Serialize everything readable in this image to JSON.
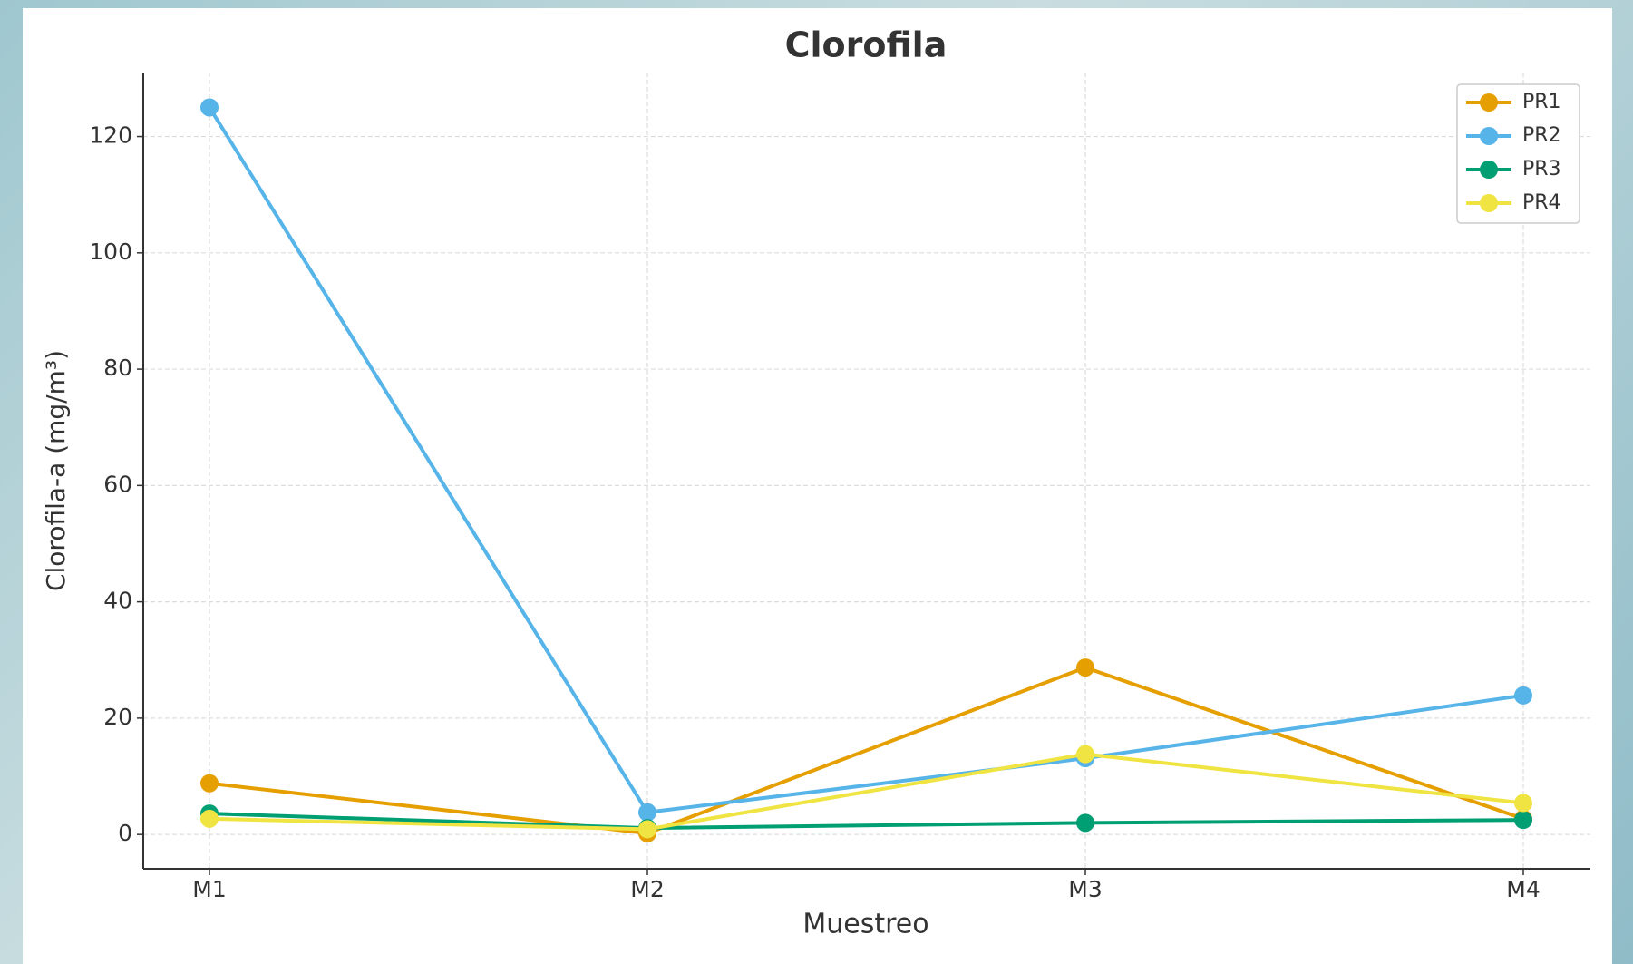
{
  "chart_data": {
    "type": "line",
    "title": "Clorofila",
    "x_label": "Muestreo",
    "y_label": "Clorofila-a (mg/m³)",
    "categories": [
      "M1",
      "M2",
      "M3",
      "M4"
    ],
    "series": [
      {
        "name": "PR1",
        "color": "#E69F00",
        "values": [
          8.8,
          0.2,
          28.7,
          2.7
        ]
      },
      {
        "name": "PR2",
        "color": "#56B4E9",
        "values": [
          125,
          3.8,
          13.1,
          23.9
        ]
      },
      {
        "name": "PR3",
        "color": "#009E73",
        "values": [
          3.6,
          1.1,
          2.0,
          2.5
        ]
      },
      {
        "name": "PR4",
        "color": "#F0E442",
        "values": [
          2.7,
          0.9,
          13.8,
          5.4
        ]
      }
    ],
    "ylim": [
      -5.9,
      131
    ],
    "yticks": [
      0,
      20,
      40,
      60,
      80,
      100,
      120
    ],
    "grid": true,
    "legend": "upper right"
  }
}
